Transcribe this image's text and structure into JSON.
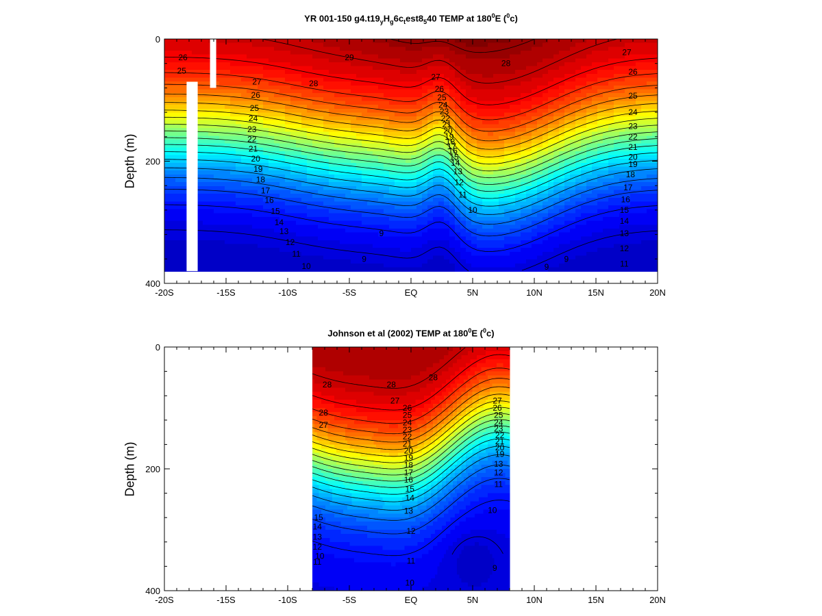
{
  "chart_data": [
    {
      "type": "heatmap",
      "title_parts": {
        "a": "YR 001-150 g4.t19",
        "b": "y",
        "c": "H",
        "d": "g",
        "e": "6c",
        "f": "t",
        "g": "est8",
        "h": "5",
        "i": "40 TEMP at 180",
        "j": "0",
        "k": "E (",
        "l": "0",
        "m": "c)"
      },
      "ylabel": "Depth (m)",
      "x_ticks": [
        "-20S",
        "-15S",
        "-10S",
        "-5S",
        "EQ",
        "5N",
        "10N",
        "15N",
        "20N"
      ],
      "y_ticks": [
        "0",
        "200",
        "400"
      ],
      "xlim": [
        -20,
        20
      ],
      "ylim": [
        0,
        400
      ],
      "data_extent": {
        "x": [
          -20,
          20
        ],
        "y": [
          0,
          380
        ]
      },
      "land_gaps": [
        [
          -18.2,
          -17.3,
          70,
          380
        ],
        [
          -16.3,
          -15.8,
          0,
          80
        ]
      ],
      "isotherm_labels": [
        {
          "x": -18.5,
          "y": 30,
          "t": "26"
        },
        {
          "x": -18.6,
          "y": 52,
          "t": "25"
        },
        {
          "x": -12.5,
          "y": 70,
          "t": "27"
        },
        {
          "x": -12.6,
          "y": 92,
          "t": "26"
        },
        {
          "x": -12.7,
          "y": 113,
          "t": "25"
        },
        {
          "x": -12.8,
          "y": 130,
          "t": "24"
        },
        {
          "x": -12.9,
          "y": 148,
          "t": "23"
        },
        {
          "x": -12.9,
          "y": 164,
          "t": "22"
        },
        {
          "x": -12.8,
          "y": 180,
          "t": "21"
        },
        {
          "x": -12.6,
          "y": 196,
          "t": "20"
        },
        {
          "x": -12.4,
          "y": 213,
          "t": "19"
        },
        {
          "x": -12.2,
          "y": 230,
          "t": "18"
        },
        {
          "x": -11.8,
          "y": 248,
          "t": "17"
        },
        {
          "x": -11.5,
          "y": 264,
          "t": "16"
        },
        {
          "x": -11.0,
          "y": 282,
          "t": "15"
        },
        {
          "x": -10.7,
          "y": 300,
          "t": "14"
        },
        {
          "x": -10.3,
          "y": 315,
          "t": "13"
        },
        {
          "x": -9.8,
          "y": 333,
          "t": "12"
        },
        {
          "x": -9.3,
          "y": 352,
          "t": "11"
        },
        {
          "x": -8.5,
          "y": 372,
          "t": "10"
        },
        {
          "x": -5.0,
          "y": 30,
          "t": "29"
        },
        {
          "x": -7.9,
          "y": 73,
          "t": "28"
        },
        {
          "x": 7.7,
          "y": 40,
          "t": "28"
        },
        {
          "x": 17.5,
          "y": 22,
          "t": "27"
        },
        {
          "x": 18.0,
          "y": 54,
          "t": "26"
        },
        {
          "x": 18.0,
          "y": 93,
          "t": "25"
        },
        {
          "x": 18.0,
          "y": 120,
          "t": "24"
        },
        {
          "x": 18.0,
          "y": 143,
          "t": "23"
        },
        {
          "x": 18.0,
          "y": 160,
          "t": "22"
        },
        {
          "x": 18.0,
          "y": 177,
          "t": "21"
        },
        {
          "x": 18.0,
          "y": 193,
          "t": "20"
        },
        {
          "x": 18.0,
          "y": 205,
          "t": "19"
        },
        {
          "x": 17.8,
          "y": 222,
          "t": "18"
        },
        {
          "x": 17.6,
          "y": 243,
          "t": "17"
        },
        {
          "x": 17.4,
          "y": 263,
          "t": "16"
        },
        {
          "x": 17.3,
          "y": 280,
          "t": "15"
        },
        {
          "x": 17.3,
          "y": 298,
          "t": "14"
        },
        {
          "x": 17.3,
          "y": 318,
          "t": "13"
        },
        {
          "x": 17.3,
          "y": 343,
          "t": "12"
        },
        {
          "x": 17.3,
          "y": 368,
          "t": "11"
        },
        {
          "x": 2.0,
          "y": 62,
          "t": "27"
        },
        {
          "x": 2.3,
          "y": 82,
          "t": "26"
        },
        {
          "x": 2.5,
          "y": 96,
          "t": "25"
        },
        {
          "x": 2.6,
          "y": 108,
          "t": "24"
        },
        {
          "x": 2.7,
          "y": 119,
          "t": "23"
        },
        {
          "x": 2.8,
          "y": 130,
          "t": "22"
        },
        {
          "x": 2.9,
          "y": 140,
          "t": "21"
        },
        {
          "x": 3.0,
          "y": 150,
          "t": "20"
        },
        {
          "x": 3.1,
          "y": 160,
          "t": "19"
        },
        {
          "x": 3.2,
          "y": 168,
          "t": "18"
        },
        {
          "x": 3.3,
          "y": 176,
          "t": "17"
        },
        {
          "x": 3.4,
          "y": 183,
          "t": "16"
        },
        {
          "x": 3.5,
          "y": 193,
          "t": "15"
        },
        {
          "x": 3.6,
          "y": 203,
          "t": "14"
        },
        {
          "x": 3.8,
          "y": 217,
          "t": "13"
        },
        {
          "x": 3.9,
          "y": 235,
          "t": "12"
        },
        {
          "x": 4.2,
          "y": 255,
          "t": "11"
        },
        {
          "x": 5.0,
          "y": 280,
          "t": "10"
        },
        {
          "x": -2.4,
          "y": 318,
          "t": "9"
        },
        {
          "x": -3.8,
          "y": 360,
          "t": "9"
        },
        {
          "x": 11.0,
          "y": 373,
          "t": "9"
        },
        {
          "x": 12.6,
          "y": 360,
          "t": "9"
        }
      ]
    },
    {
      "type": "heatmap",
      "title_parts": {
        "a": "Johnson et al (2002) TEMP at 180",
        "j": "0",
        "k": "E (",
        "l": "0",
        "m": "c)"
      },
      "ylabel": "Depth (m)",
      "x_ticks": [
        "-20S",
        "-15S",
        "-10S",
        "-5S",
        "EQ",
        "5N",
        "10N",
        "15N",
        "20N"
      ],
      "y_ticks": [
        "0",
        "200",
        "400"
      ],
      "xlim": [
        -20,
        20
      ],
      "ylim": [
        0,
        400
      ],
      "data_extent": {
        "x": [
          -8,
          8
        ],
        "y": [
          0,
          400
        ]
      },
      "isotherm_labels": [
        {
          "x": -6.8,
          "y": 62,
          "t": "28"
        },
        {
          "x": -7.1,
          "y": 108,
          "t": "28"
        },
        {
          "x": -7.1,
          "y": 128,
          "t": "27"
        },
        {
          "x": 1.8,
          "y": 50,
          "t": "28"
        },
        {
          "x": -1.6,
          "y": 62,
          "t": "28"
        },
        {
          "x": -1.3,
          "y": 88,
          "t": "27"
        },
        {
          "x": -0.3,
          "y": 100,
          "t": "26"
        },
        {
          "x": -0.3,
          "y": 112,
          "t": "25"
        },
        {
          "x": -0.3,
          "y": 124,
          "t": "24"
        },
        {
          "x": -0.3,
          "y": 136,
          "t": "23"
        },
        {
          "x": -0.3,
          "y": 147,
          "t": "22"
        },
        {
          "x": -0.3,
          "y": 159,
          "t": "21"
        },
        {
          "x": -0.2,
          "y": 170,
          "t": "20"
        },
        {
          "x": -0.2,
          "y": 182,
          "t": "19"
        },
        {
          "x": -0.2,
          "y": 194,
          "t": "18"
        },
        {
          "x": -0.2,
          "y": 206,
          "t": "17"
        },
        {
          "x": -0.2,
          "y": 218,
          "t": "16"
        },
        {
          "x": -0.1,
          "y": 233,
          "t": "15"
        },
        {
          "x": -0.1,
          "y": 248,
          "t": "14"
        },
        {
          "x": -0.2,
          "y": 269,
          "t": "13"
        },
        {
          "x": 0.0,
          "y": 302,
          "t": "12"
        },
        {
          "x": 0.0,
          "y": 351,
          "t": "11"
        },
        {
          "x": -0.1,
          "y": 387,
          "t": "10"
        },
        {
          "x": -7.4,
          "y": 343,
          "t": "10"
        },
        {
          "x": -7.5,
          "y": 280,
          "t": "15"
        },
        {
          "x": -7.6,
          "y": 295,
          "t": "14"
        },
        {
          "x": -7.6,
          "y": 312,
          "t": "13"
        },
        {
          "x": -7.6,
          "y": 328,
          "t": "12"
        },
        {
          "x": -7.6,
          "y": 353,
          "t": "11"
        },
        {
          "x": 7.0,
          "y": 88,
          "t": "27"
        },
        {
          "x": 7.0,
          "y": 100,
          "t": "26"
        },
        {
          "x": 7.1,
          "y": 112,
          "t": "25"
        },
        {
          "x": 7.1,
          "y": 124,
          "t": "24"
        },
        {
          "x": 7.1,
          "y": 134,
          "t": "23"
        },
        {
          "x": 7.2,
          "y": 145,
          "t": "22"
        },
        {
          "x": 7.2,
          "y": 155,
          "t": "21"
        },
        {
          "x": 7.2,
          "y": 165,
          "t": "20"
        },
        {
          "x": 7.2,
          "y": 176,
          "t": "19"
        },
        {
          "x": 7.1,
          "y": 192,
          "t": "13"
        },
        {
          "x": 7.1,
          "y": 206,
          "t": "12"
        },
        {
          "x": 7.1,
          "y": 225,
          "t": "11"
        },
        {
          "x": 6.6,
          "y": 268,
          "t": "10"
        },
        {
          "x": 6.8,
          "y": 363,
          "t": "9"
        }
      ]
    }
  ]
}
